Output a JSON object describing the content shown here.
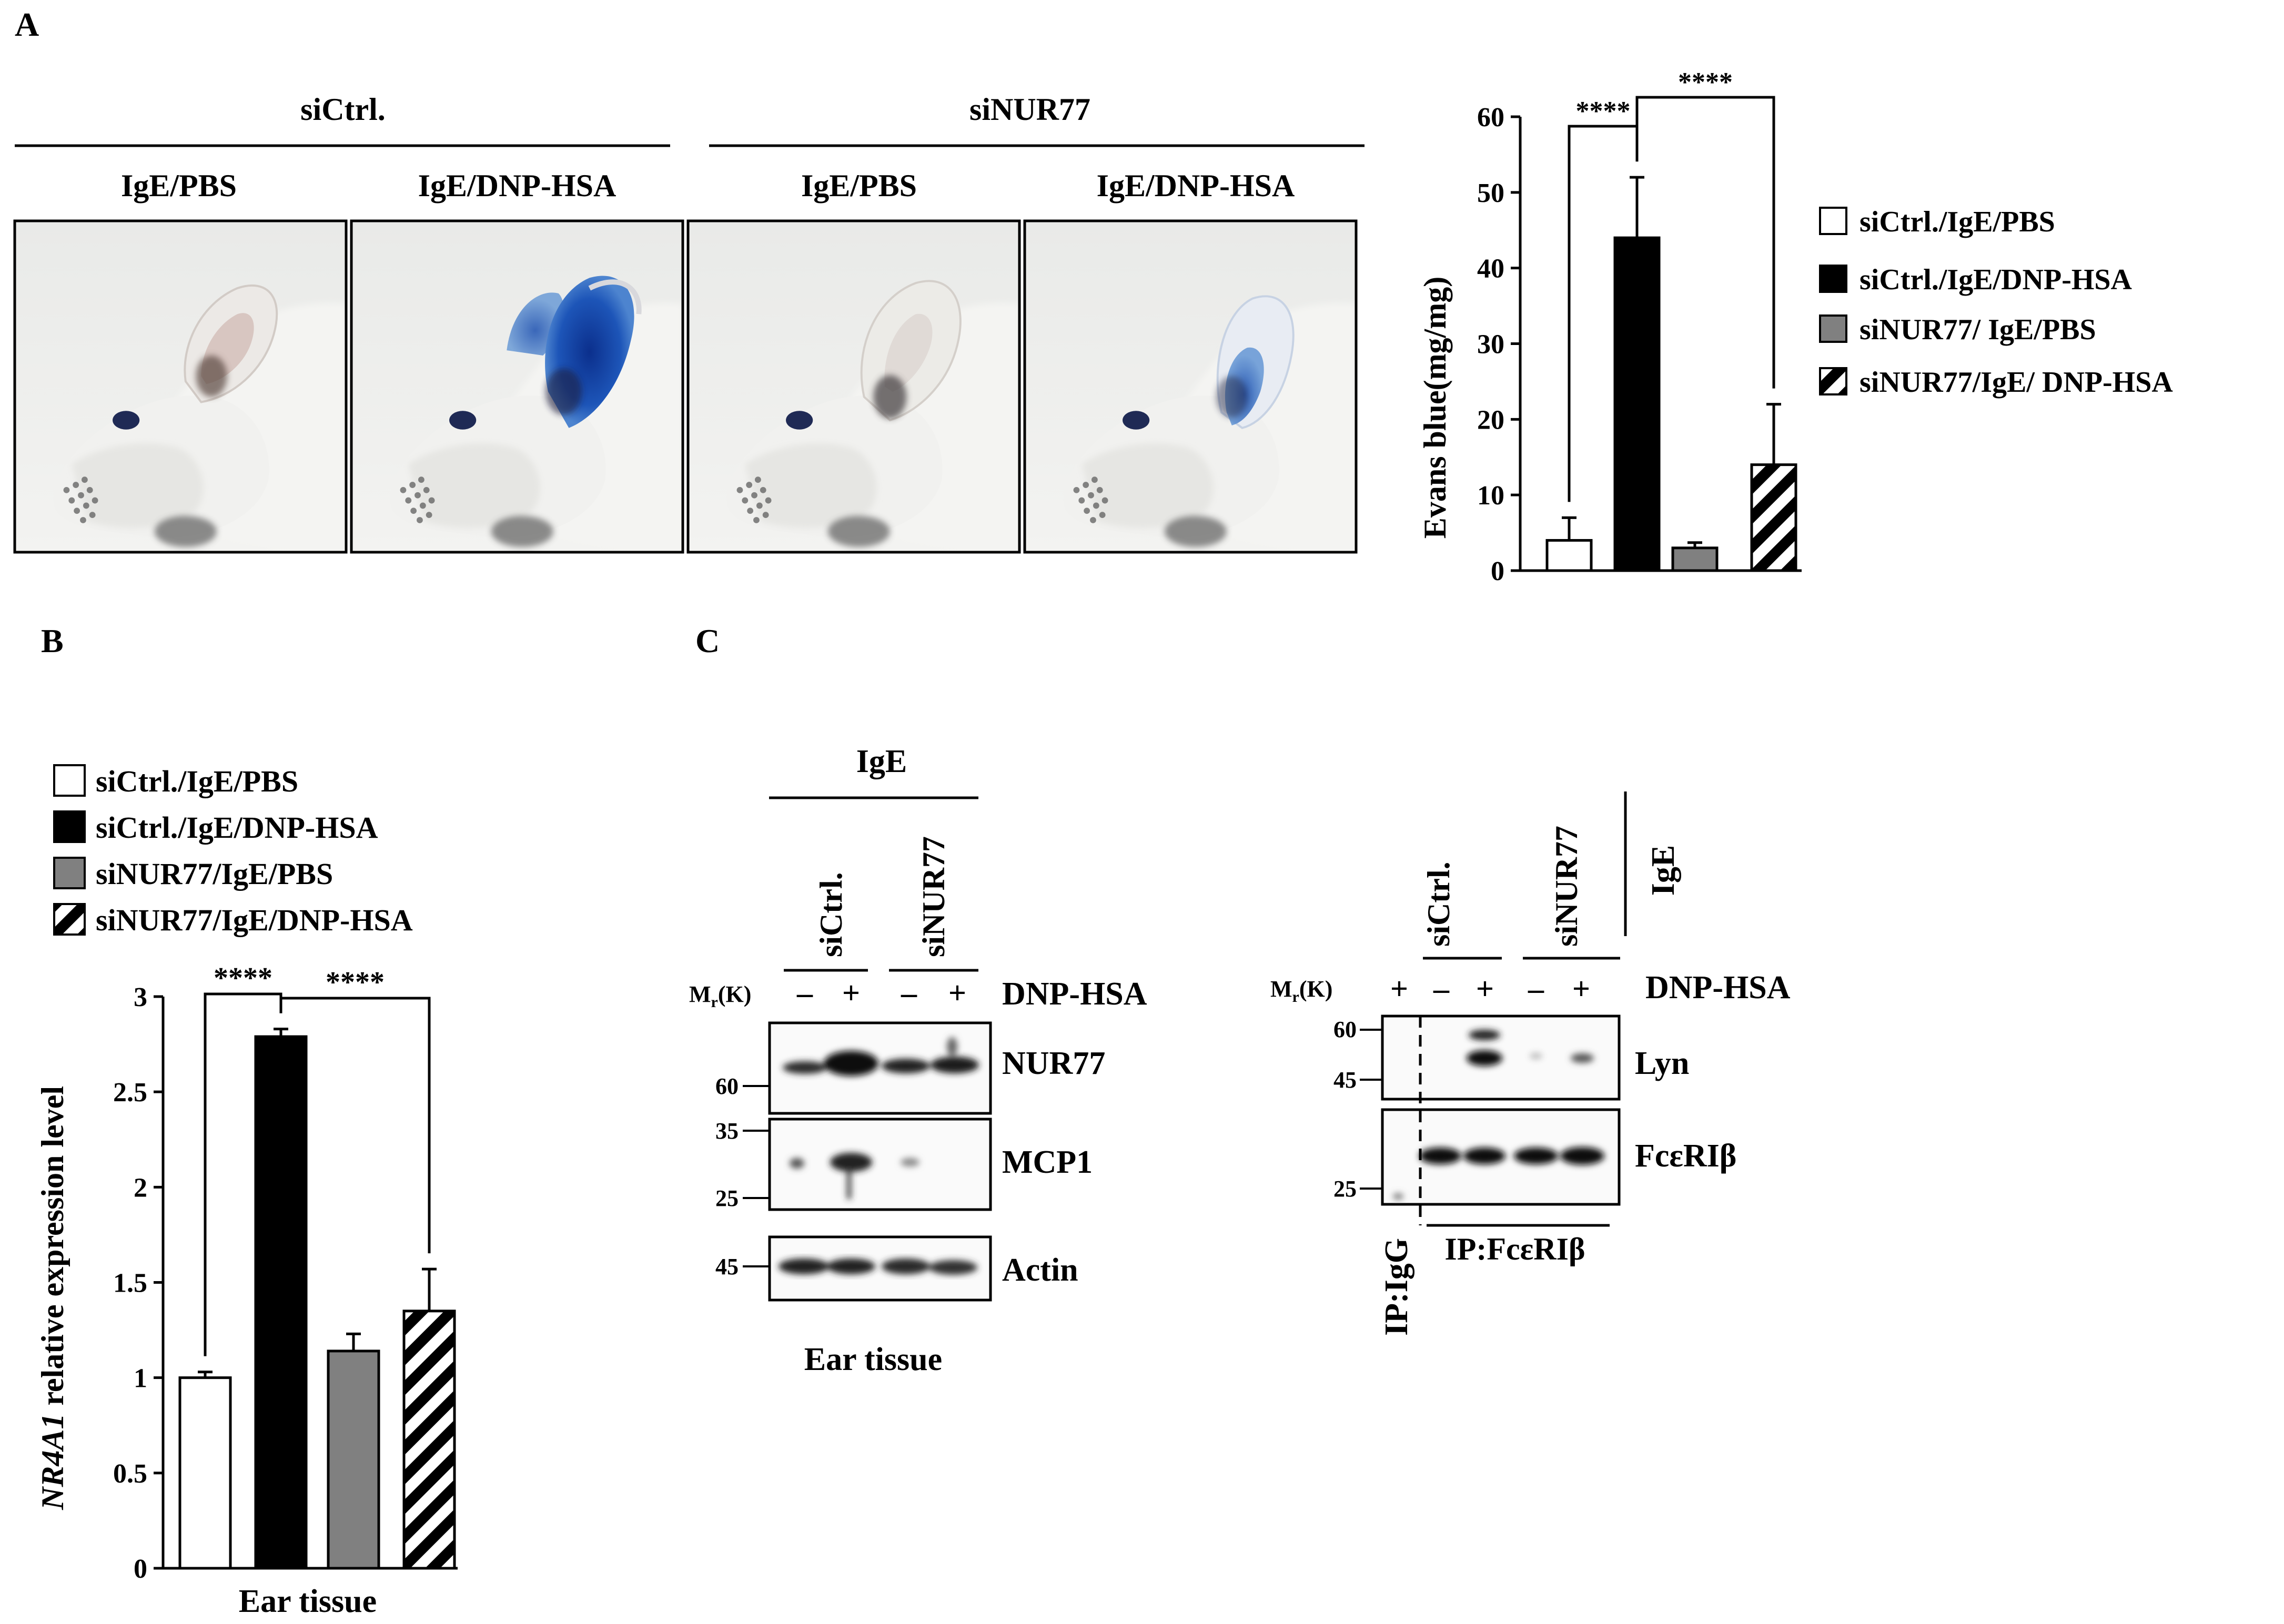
{
  "panels": {
    "a": "A",
    "b": "B",
    "c": "C"
  },
  "photos": {
    "group_ctrl": "siCtrl.",
    "group_nur": "siNUR77",
    "cond_pbs": "IgE/PBS",
    "cond_dnp": "IgE/DNP-HSA"
  },
  "legend_a": [
    "siCtrl./IgE/PBS",
    "siCtrl./IgE/DNP-HSA",
    "siNUR77/ IgE/PBS",
    "siNUR77/IgE/ DNP-HSA"
  ],
  "legend_b": [
    "siCtrl./IgE/PBS",
    "siCtrl./IgE/DNP-HSA",
    "siNUR77/IgE/PBS",
    "siNUR77/IgE/DNP-HSA"
  ],
  "colors": {
    "white": "#ffffff",
    "black": "#000000",
    "gray": "#808080",
    "hatch": "#000000"
  },
  "chart_data": [
    {
      "type": "bar",
      "categories": [
        "siCtrl./IgE/PBS",
        "siCtrl./IgE/DNP-HSA",
        "siNUR77/ IgE/PBS",
        "siNUR77/IgE/ DNP-HSA"
      ],
      "values": [
        4,
        44,
        3,
        14
      ],
      "errors": [
        3,
        8,
        0.7,
        8
      ],
      "fills": [
        "white",
        "black",
        "gray",
        "hatch"
      ],
      "ylabel": "Evans blue(mg/mg)",
      "xlabel": "",
      "ylim": [
        0,
        60
      ],
      "yticks": [
        0,
        10,
        20,
        30,
        40,
        50,
        60
      ],
      "significance": [
        "****",
        "****"
      ],
      "grid": false
    },
    {
      "type": "bar",
      "categories": [
        "siCtrl./IgE/PBS",
        "siCtrl./IgE/DNP-HSA",
        "siNUR77/IgE/PBS",
        "siNUR77/IgE/DNP-HSA"
      ],
      "values": [
        1.0,
        2.79,
        1.14,
        1.35
      ],
      "errors": [
        0.03,
        0.04,
        0.09,
        0.22
      ],
      "fills": [
        "white",
        "black",
        "gray",
        "hatch"
      ],
      "ylabel_italic": "NR4A1",
      "ylabel_rest": " relative expression level",
      "xlabel": "Ear tissue",
      "ylim": [
        0,
        3
      ],
      "yticks": [
        "0",
        "0.5",
        "1",
        "1.5",
        "2",
        "2.5",
        "3"
      ],
      "significance": [
        "****",
        "****"
      ],
      "grid": false
    }
  ],
  "blot1": {
    "top_label": "IgE",
    "lane_groups": [
      "siCtrl.",
      "siNUR77"
    ],
    "mr": "M",
    "mr_sub": "r",
    "mr_unit": "(K)",
    "signs": [
      "–",
      "+",
      "–",
      "+"
    ],
    "treatment": "DNP-HSA",
    "markers": [
      "60",
      "35",
      "25",
      "45"
    ],
    "bands": [
      "NUR77",
      "MCP1",
      "Actin"
    ],
    "caption": "Ear tissue"
  },
  "blot2": {
    "top_label": "IgE",
    "lane_groups": [
      "siCtrl.",
      "siNUR77"
    ],
    "mr": "M",
    "mr_sub": "r",
    "mr_unit": "(K)",
    "signs": [
      "+",
      "–",
      "+",
      "–",
      "+"
    ],
    "treatment": "DNP-HSA",
    "markers": [
      "60",
      "45",
      "25"
    ],
    "bands": [
      "Lyn",
      "FcεRIβ"
    ],
    "ip_igg": "IP:IgG",
    "ip_fc": "IP:FcεRIβ"
  }
}
